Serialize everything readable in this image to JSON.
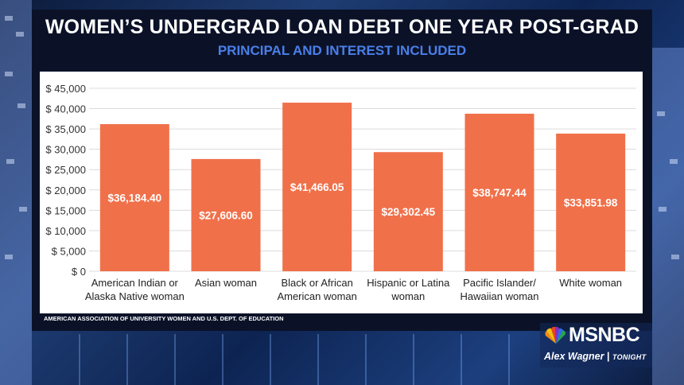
{
  "header": {
    "title": "WOMEN’S UNDERGRAD LOAN DEBT ONE YEAR POST-GRAD",
    "subtitle": "PRINCIPAL AND INTEREST INCLUDED"
  },
  "source": "AMERICAN ASSOCIATION OF UNIVERSITY WOMEN AND U.S. DEPT. OF EDUCATION",
  "network": {
    "logo": "MSNBC",
    "show": "Alex Wagner",
    "show_suffix": "TONIGHT"
  },
  "colors": {
    "bar": "#f0704a",
    "gridline": "#dcdcdc",
    "panel": "#ffffff",
    "frame": "#0b1228",
    "subtitle": "#4a7fe8"
  },
  "chart_data": {
    "type": "bar",
    "categories": [
      [
        "American Indian or",
        "Alaska Native woman"
      ],
      [
        "Asian woman"
      ],
      [
        "Black or African",
        "American woman"
      ],
      [
        "Hispanic or Latina",
        "woman"
      ],
      [
        "Pacific Islander/",
        "Hawaiian woman"
      ],
      [
        "White woman"
      ]
    ],
    "values": [
      36184.4,
      27606.6,
      41466.05,
      29302.45,
      38747.44,
      33851.98
    ],
    "data_labels": [
      "$36,184.40",
      "$27,606.60",
      "$41,466.05",
      "$29,302.45",
      "$38,747.44",
      "$33,851.98"
    ],
    "y_ticks": [
      {
        "value": 0,
        "label": "$         0"
      },
      {
        "value": 5000,
        "label": "$   5,000"
      },
      {
        "value": 10000,
        "label": "$ 10,000"
      },
      {
        "value": 15000,
        "label": "$ 15,000"
      },
      {
        "value": 20000,
        "label": "$ 20,000"
      },
      {
        "value": 25000,
        "label": "$ 25,000"
      },
      {
        "value": 30000,
        "label": "$ 30,000"
      },
      {
        "value": 35000,
        "label": "$ 35,000"
      },
      {
        "value": 40000,
        "label": "$ 40,000"
      },
      {
        "value": 45000,
        "label": "$ 45,000"
      }
    ],
    "ylim": [
      0,
      45000
    ],
    "grid": true,
    "legend": "none"
  }
}
